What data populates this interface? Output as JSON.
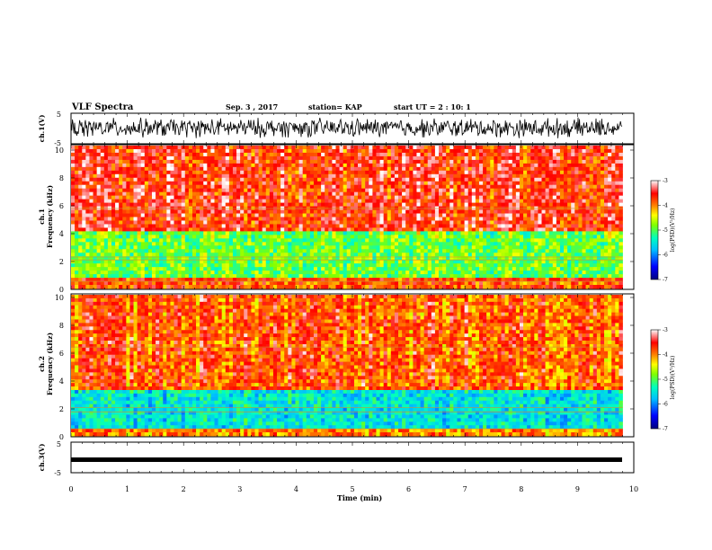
{
  "header": {
    "title": "VLF Spectra",
    "date": "Sep. 3 , 2017",
    "station": "station= KAP",
    "start": "start UT =  2 : 10: 1"
  },
  "chart_data": [
    {
      "type": "line",
      "name": "waveform-ch1",
      "ylabel": "ch.1(V)",
      "xlim": [
        0,
        10
      ],
      "ylim": [
        -5,
        5
      ],
      "yticks": [
        "5",
        "-5"
      ],
      "description_values": {
        "baseline_V": 0.2,
        "amplitude_V": 3.6
      }
    },
    {
      "type": "heatmap",
      "name": "spectrogram-ch1",
      "ylabel": "ch.1\nFrequency (kHz)",
      "xlim": [
        0,
        10
      ],
      "ylim": [
        0,
        10
      ],
      "yticks": [
        "0",
        "2",
        "4",
        "6",
        "8",
        "10"
      ],
      "data_end_min": 9.8,
      "colorbar": {
        "label": "log(PSD)(V²/Hz)",
        "range": [
          -7,
          -3
        ],
        "ticks": [
          "-3",
          "-4",
          "-5",
          "-6",
          "-7"
        ]
      },
      "bands_log_psd": [
        {
          "f_kHz": [
            0,
            0.8
          ],
          "value": -3.8
        },
        {
          "f_kHz": [
            0.8,
            4.0
          ],
          "value": -4.9
        },
        {
          "f_kHz": [
            4.0,
            10
          ],
          "value": -3.6
        }
      ],
      "lines_kHz": [
        0.5,
        2.0,
        2.2,
        5.6
      ]
    },
    {
      "type": "heatmap",
      "name": "spectrogram-ch2",
      "ylabel": "ch.2\nFrequency (kHz)",
      "xlim": [
        0,
        10
      ],
      "ylim": [
        0,
        10
      ],
      "yticks": [
        "0",
        "2",
        "4",
        "6",
        "8",
        "10"
      ],
      "data_end_min": 9.8,
      "colorbar": {
        "label": "log(PSD)(V²/Hz)",
        "range": [
          -7,
          -3
        ],
        "ticks": [
          "-3",
          "-4",
          "-5",
          "-6",
          "-7"
        ]
      },
      "bands_log_psd": [
        {
          "f_kHz": [
            0,
            0.6
          ],
          "value": -4.0
        },
        {
          "f_kHz": [
            0.6,
            3.2
          ],
          "value": -5.5
        },
        {
          "f_kHz": [
            3.2,
            10
          ],
          "value": -3.8
        }
      ],
      "lines_kHz": [
        0.5,
        1.7,
        2.0,
        6.3
      ]
    },
    {
      "type": "line",
      "name": "waveform-ch3",
      "ylabel": "ch.3(V)",
      "xlim": [
        0,
        10
      ],
      "ylim": [
        -5,
        5
      ],
      "yticks": [
        "5",
        "-5"
      ],
      "values_constant_V": -0.5
    }
  ],
  "xaxis": {
    "label": "Time (min)",
    "ticks": [
      "0",
      "1",
      "2",
      "3",
      "4",
      "5",
      "6",
      "7",
      "8",
      "9",
      "10"
    ]
  },
  "colors": {
    "scale": [
      "#00007f",
      "#0000ff",
      "#00bfff",
      "#00ffbf",
      "#7fff00",
      "#ffff00",
      "#ff7f00",
      "#ff0000",
      "#ffffff"
    ]
  }
}
